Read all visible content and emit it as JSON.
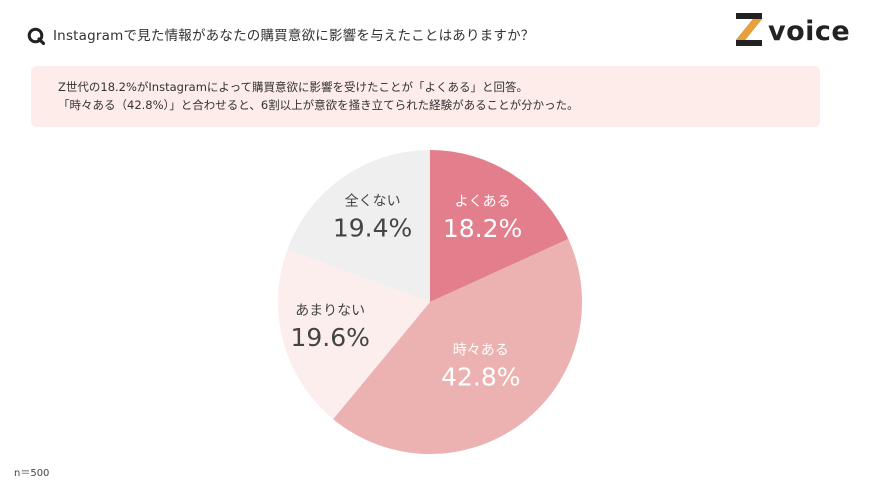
{
  "header": {
    "question": "Instagramで見た情報があなたの購買意欲に影響を与えたことはありますか？",
    "logo_text": "voice"
  },
  "summary": {
    "line1": "Z世代の18.2%がInstagramによって購買意欲に影響を受けたことが「よくある」と回答。",
    "line2": "「時々ある（42.8%）」と合わせると、6割以上が意欲を掻き立てられた経験があることが分かった。"
  },
  "footnote": "n＝500",
  "colors": {
    "accent": "#e37f8d",
    "summary_bg": "#fdecea"
  },
  "chart_data": {
    "type": "pie",
    "slices": [
      {
        "label": "よくある",
        "value": 18.2,
        "value_label": "18.2%",
        "color": "#e37f8d",
        "text_color": "#ffffff"
      },
      {
        "label": "時々ある",
        "value": 42.8,
        "value_label": "42.8%",
        "color": "#ecb1b1",
        "text_color": "#ffffff"
      },
      {
        "label": "あまりない",
        "value": 19.6,
        "value_label": "19.6%",
        "color": "#fdeeee",
        "text_color": "#444444"
      },
      {
        "label": "全くない",
        "value": 19.4,
        "value_label": "19.4%",
        "color": "#efefef",
        "text_color": "#444444"
      }
    ],
    "start_angle": "12 o'clock",
    "direction": "clockwise"
  }
}
